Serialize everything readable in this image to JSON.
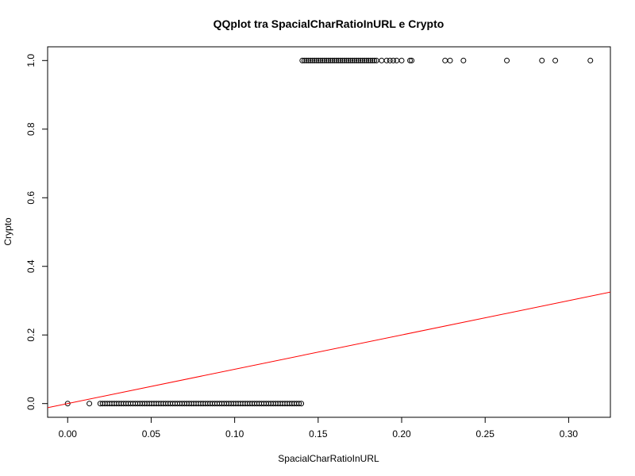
{
  "chart_data": {
    "type": "scatter",
    "title": "QQplot tra SpacialCharRatioInURL e Crypto",
    "xlabel": "SpacialCharRatioInURL",
    "ylabel": "Crypto",
    "xlim": [
      -0.012,
      0.325
    ],
    "ylim": [
      -0.04,
      1.04
    ],
    "xticks": [
      0.0,
      0.05,
      0.1,
      0.15,
      0.2,
      0.25,
      0.3
    ],
    "xtick_labels": [
      "0.00",
      "0.05",
      "0.10",
      "0.15",
      "0.20",
      "0.25",
      "0.30"
    ],
    "yticks": [
      0.0,
      0.2,
      0.4,
      0.6,
      0.8,
      1.0
    ],
    "ytick_labels": [
      "0.0",
      "0.2",
      "0.4",
      "0.6",
      "0.8",
      "1.0"
    ],
    "series": [
      {
        "marker": "open-circle",
        "color": "#000000",
        "points_y0": {
          "y": 0,
          "isolated_x": [
            0.0,
            0.013
          ],
          "dense_range_x": [
            0.0195,
            0.14
          ],
          "dense_step": 0.0014
        },
        "points_y1": {
          "y": 1,
          "dense_range_x": [
            0.1405,
            0.186
          ],
          "dense_step": 0.0012,
          "extra_x": [
            0.188,
            0.191,
            0.193,
            0.195,
            0.197,
            0.2,
            0.205,
            0.206,
            0.226,
            0.229,
            0.237,
            0.263,
            0.284,
            0.292,
            0.313
          ]
        }
      }
    ],
    "reference_line": {
      "color": "#ff0000",
      "intercept": 0.0,
      "slope": 1.0
    },
    "grid": false,
    "legend": "none"
  }
}
